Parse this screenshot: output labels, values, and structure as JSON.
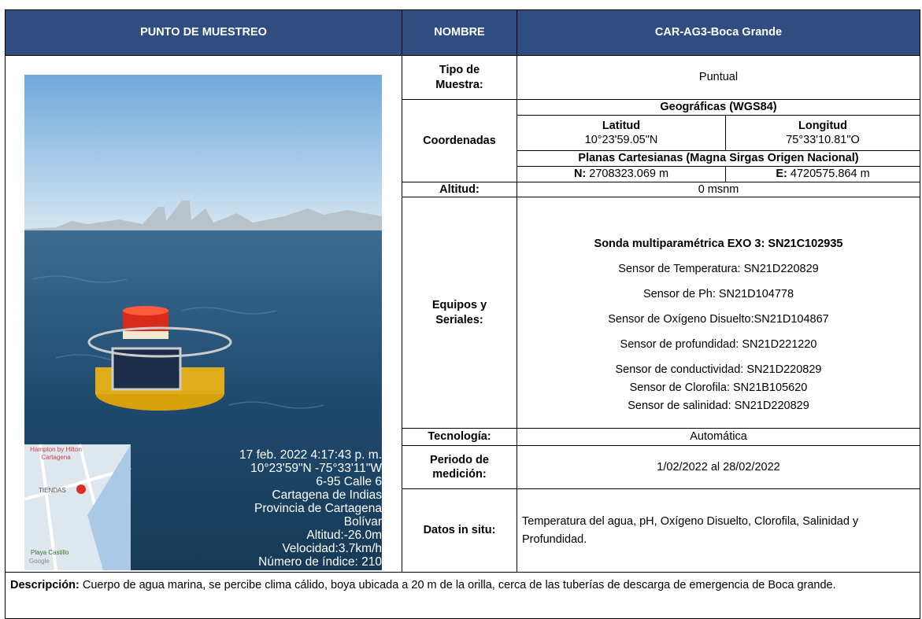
{
  "header": {
    "col1": "PUNTO DE MUESTREO",
    "col2": "NOMBRE",
    "col3": "CAR-AG3-Boca Grande"
  },
  "tipo": {
    "label": "Tipo de Muestra:",
    "value": "Puntual"
  },
  "coordenadas": {
    "label": "Coordenadas",
    "geo_title": "Geográficas (WGS84)",
    "lat_label": "Latitud",
    "lat_value": "10°23'59.05\"N",
    "lon_label": "Longitud",
    "lon_value": "75°33'10.81\"O",
    "planas_title": "Planas Cartesianas (Magna Sirgas Origen Nacional)",
    "n_label": "N:",
    "n_value": "2708323.069 m",
    "e_label": "E:",
    "e_value": "4720575.864 m"
  },
  "altitud": {
    "label": "Altitud:",
    "value": "0 msnm"
  },
  "equipos": {
    "label": "Equipos y Seriales:",
    "title": "Sonda multiparamétrica EXO 3: SN21C102935",
    "items": [
      "Sensor de Temperatura: SN21D220829",
      "Sensor de Ph: SN21D104778",
      "Sensor de Oxígeno Disuelto:SN21D104867",
      "Sensor de profundidad: SN21D221220",
      "Sensor de conductividad: SN21D220829",
      "Sensor de Clorofila: SN21B105620",
      "Sensor de salinidad: SN21D220829"
    ]
  },
  "tecnologia": {
    "label": "Tecnología:",
    "value": "Automática"
  },
  "periodo": {
    "label": "Periodo de medición:",
    "value": "1/02/2022 al 28/02/2022"
  },
  "datos": {
    "label": "Datos in situ:",
    "value": "Temperatura del agua, pH, Oxígeno Disuelto, Clorofila, Salinidad y Profundidad."
  },
  "descripcion": {
    "label": "Descripción:",
    "text": "Cuerpo de agua marina, se percibe clima cálido, boya ubicada a 20 m de la orilla, cerca de las tuberías de descarga de emergencia de Boca grande."
  },
  "photo": {
    "overlay": [
      "17 feb. 2022 4:17:43 p. m.",
      "10°23'59\"N -75°33'11\"W",
      "6-95 Calle 6",
      "Cartagena de Indias",
      "Provincia de Cartagena",
      "Bolívar",
      "Altitud:-26.0m",
      "Velocidad:3.7km/h",
      "Número de índice: 210"
    ],
    "map_labels": [
      "Hampton by Hilton Cartagena",
      "TIENDAS",
      "Playa Castillo",
      "Google"
    ]
  }
}
